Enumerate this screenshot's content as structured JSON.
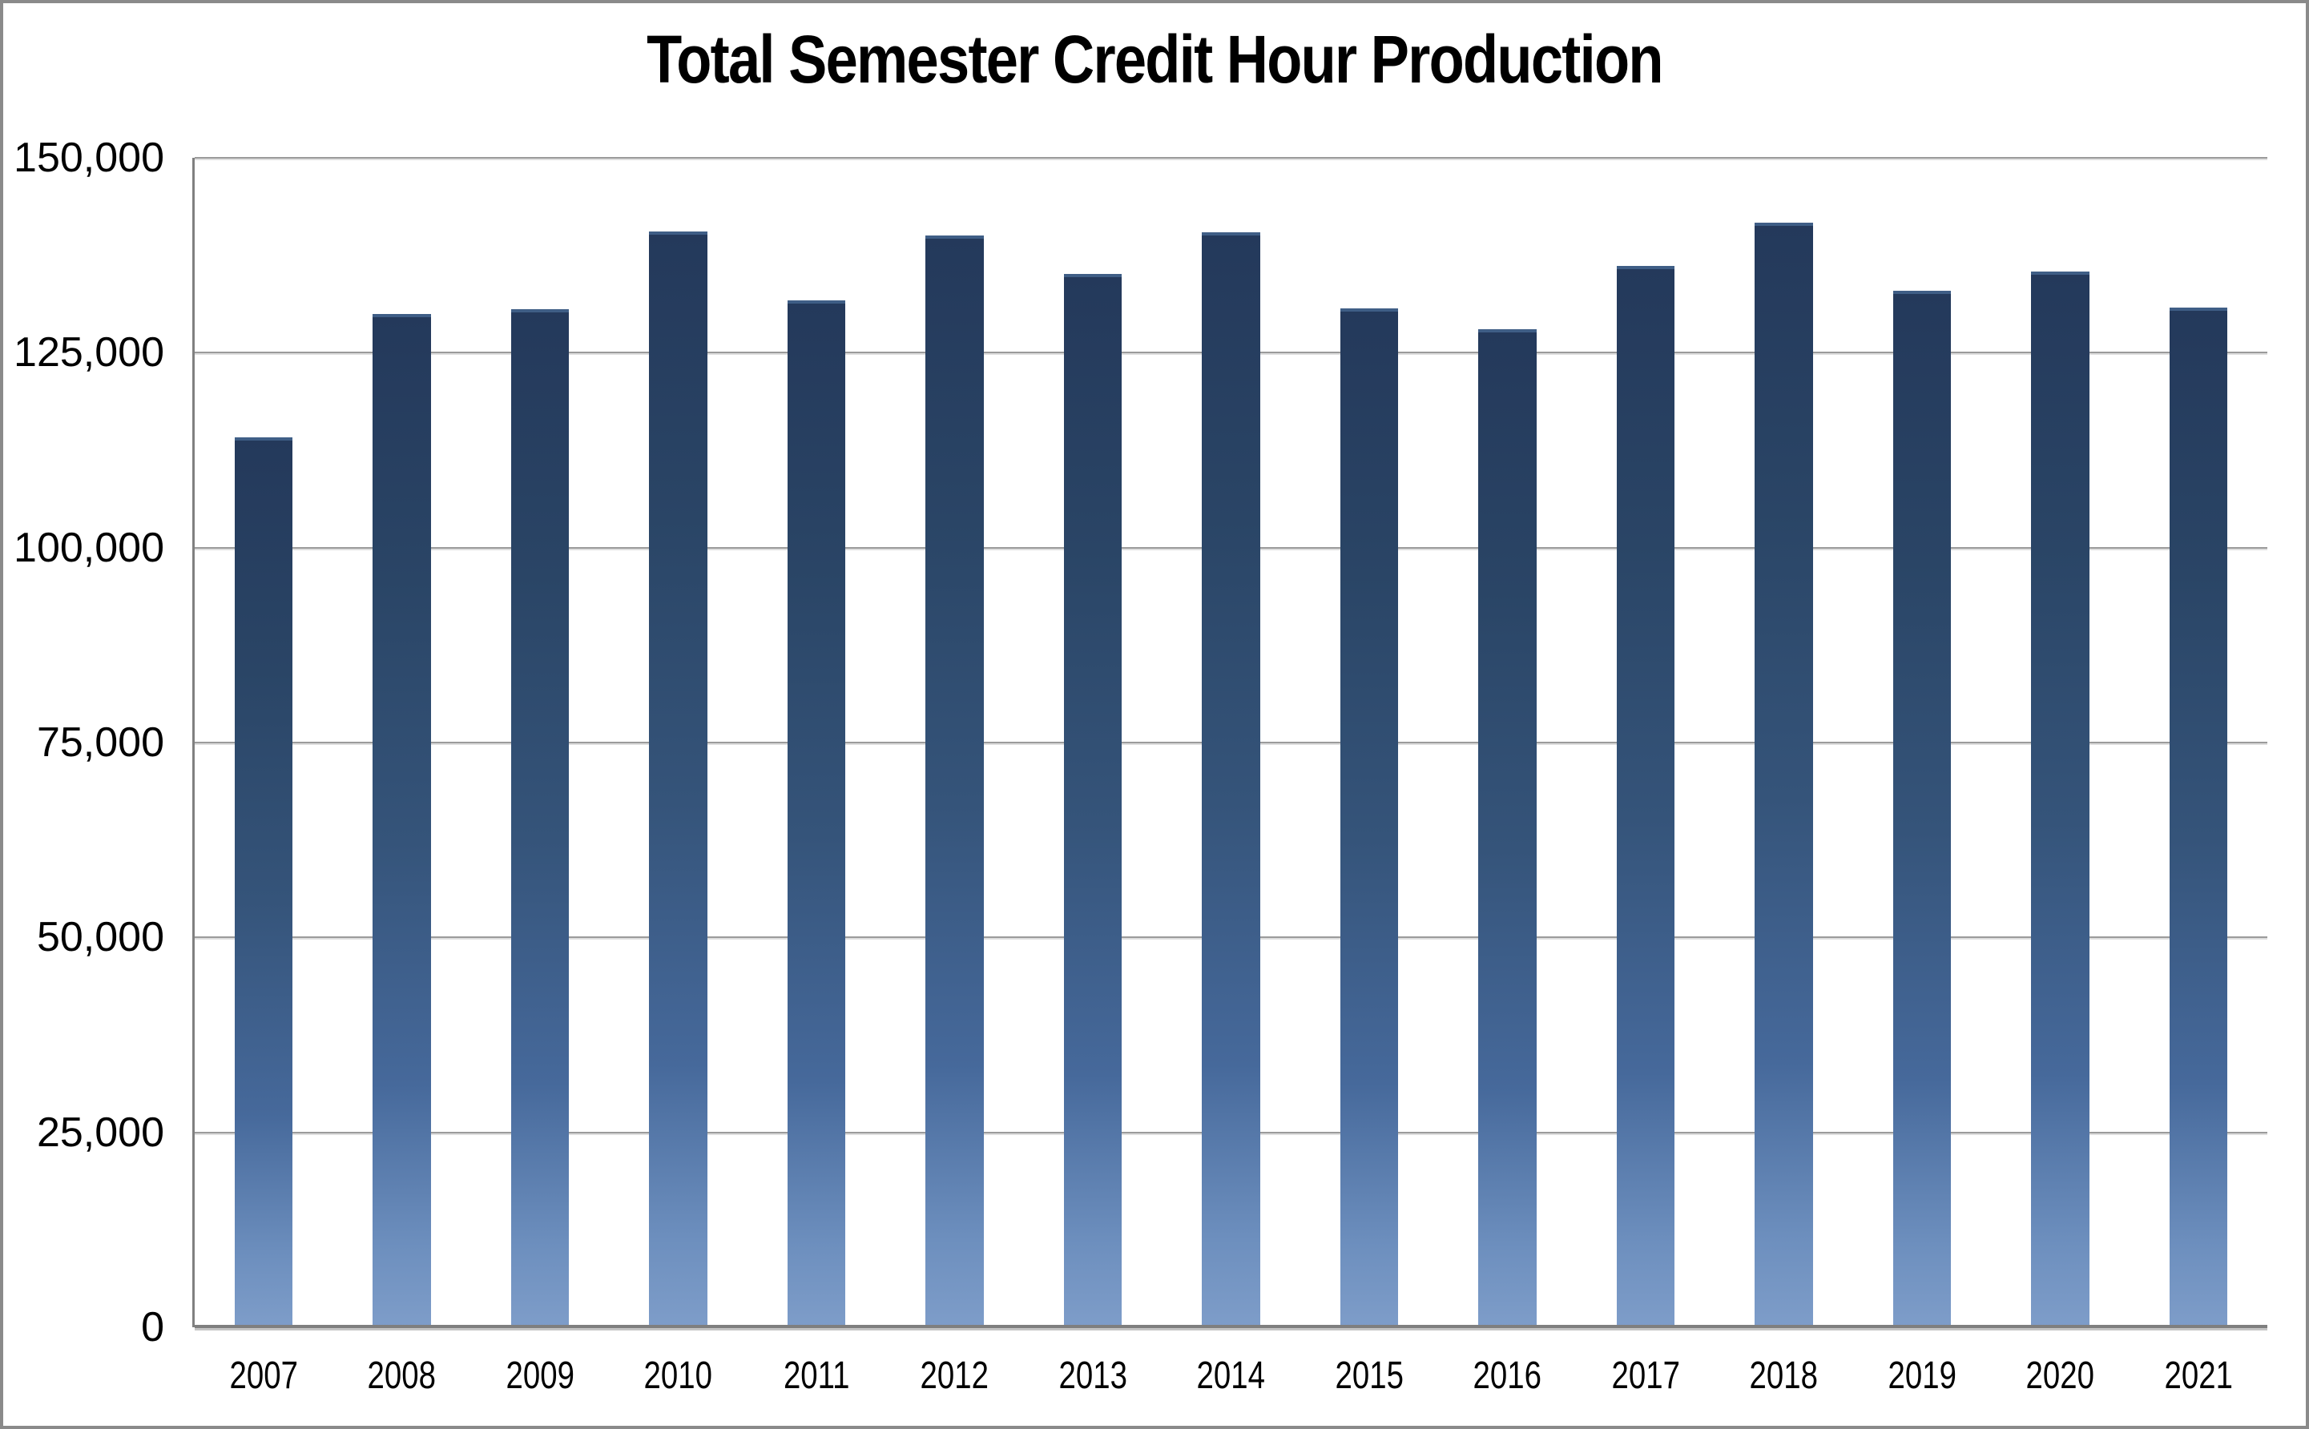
{
  "chart_data": {
    "type": "bar",
    "title": "Total Semester Credit Hour Production",
    "categories": [
      "2007",
      "2008",
      "2009",
      "2010",
      "2011",
      "2012",
      "2013",
      "2014",
      "2015",
      "2016",
      "2017",
      "2018",
      "2019",
      "2020",
      "2021"
    ],
    "values": [
      114100,
      130000,
      130600,
      140600,
      131700,
      140000,
      135100,
      140400,
      130700,
      128000,
      136100,
      141700,
      132900,
      135400,
      130800
    ],
    "xlabel": "",
    "ylabel": "",
    "ylim": [
      0,
      150000
    ],
    "yticks": [
      {
        "value": 0,
        "label": "0"
      },
      {
        "value": 25000,
        "label": "25,000"
      },
      {
        "value": 50000,
        "label": "50,000"
      },
      {
        "value": 75000,
        "label": "75,000"
      },
      {
        "value": 100000,
        "label": "100,000"
      },
      {
        "value": 125000,
        "label": "125,000"
      },
      {
        "value": 150000,
        "label": "150,000"
      }
    ],
    "grid": "horizontal",
    "legend_position": "none",
    "colors": {
      "bar_gradient_top": "#24395b",
      "bar_gradient_bottom": "#7e9dc9",
      "bar_top_edge": "#3f5e86",
      "gridline": "#9b9b9b",
      "axis_line": "#7f7f7f",
      "frame_border": "#8a8a8a",
      "background": "#ffffff",
      "text": "#000000"
    }
  }
}
